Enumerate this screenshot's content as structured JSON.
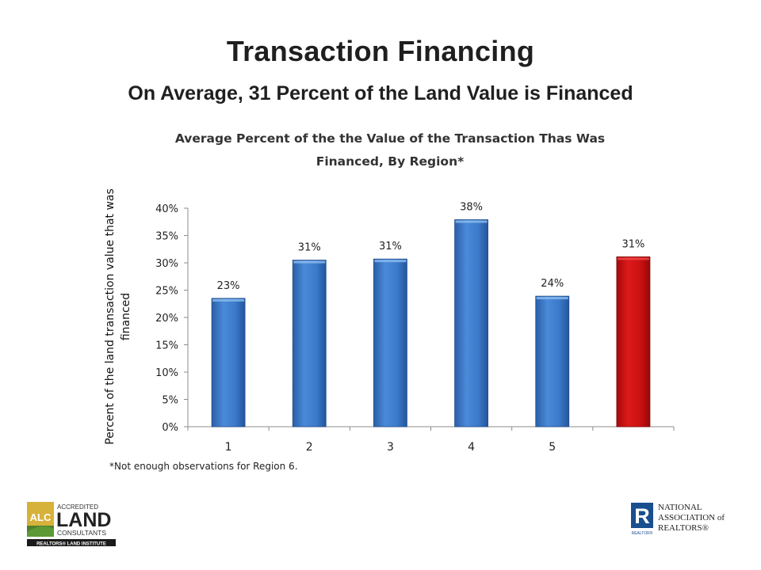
{
  "slide": {
    "title": "Transaction Financing",
    "subtitle": "On Average, 31 Percent of  the Land Value is Financed",
    "footnote": "*Not enough observations for Region 6."
  },
  "chart_data": {
    "type": "bar",
    "title": "Average Percent of the the Value of the Transaction Thas Was Financed, By Region*",
    "title_lines": [
      "Average Percent of the the Value of the Transaction Thas Was",
      "Financed, By Region*"
    ],
    "xlabel": "",
    "ylabel": "Percent of the land transaction value that was financed",
    "ylabel_lines": [
      "Percent of the land transaction value that was",
      "financed"
    ],
    "categories": [
      "1",
      "2",
      "3",
      "4",
      "5",
      ""
    ],
    "values": [
      0.235,
      0.305,
      0.307,
      0.379,
      0.239,
      0.311
    ],
    "data_labels": [
      "23%",
      "31%",
      "31%",
      "38%",
      "24%",
      "31%"
    ],
    "ylim": [
      0,
      0.4
    ],
    "yticks": [
      "0%",
      "5%",
      "10%",
      "15%",
      "20%",
      "25%",
      "30%",
      "35%",
      "40%"
    ],
    "grid": false,
    "legend": "none",
    "colors": {
      "region_bar": "#3a78c6",
      "average_bar": "#cc1111"
    },
    "highlight_index": 5
  },
  "logos": {
    "alc": {
      "badge": "ALC",
      "line1": "ACCREDITED",
      "line2": "LAND",
      "line3": "CONSULTANTS",
      "tagline": "REALTORS® LAND INSTITUTE"
    },
    "nar": {
      "mark": "R",
      "line1": "NATIONAL",
      "line2": "ASSOCIATION of",
      "line3": "REALTORS®",
      "small": "REALTOR®"
    }
  }
}
